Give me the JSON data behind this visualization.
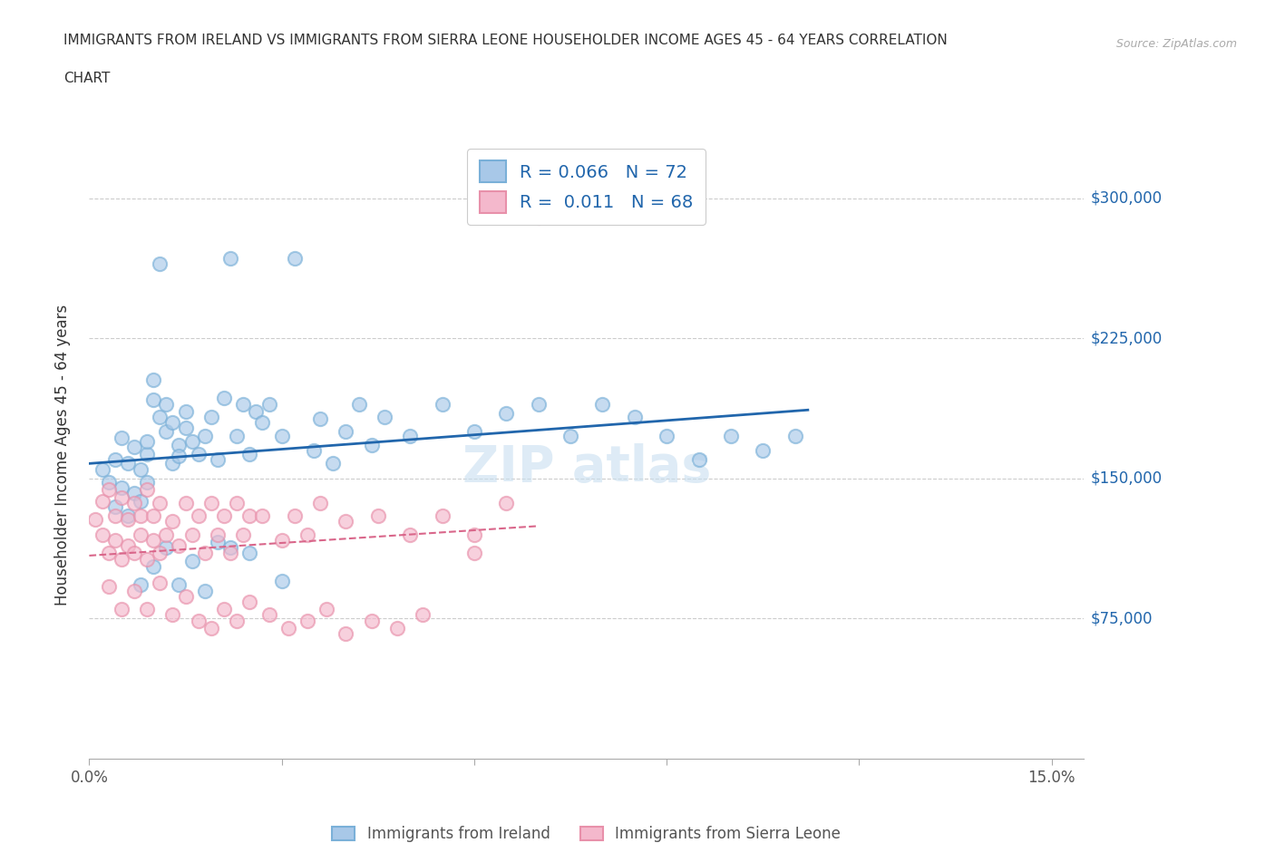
{
  "title_line1": "IMMIGRANTS FROM IRELAND VS IMMIGRANTS FROM SIERRA LEONE HOUSEHOLDER INCOME AGES 45 - 64 YEARS CORRELATION",
  "title_line2": "CHART",
  "source_text": "Source: ZipAtlas.com",
  "ylabel": "Householder Income Ages 45 - 64 years",
  "xlim": [
    0.0,
    0.155
  ],
  "ylim": [
    0,
    325000
  ],
  "yticks": [
    75000,
    150000,
    225000,
    300000
  ],
  "ytick_labels": [
    "$75,000",
    "$150,000",
    "$225,000",
    "$300,000"
  ],
  "xticks": [
    0.0,
    0.03,
    0.06,
    0.09,
    0.12,
    0.15
  ],
  "xtick_labels": [
    "0.0%",
    "",
    "",
    "",
    "",
    "15.0%"
  ],
  "ireland_color": "#a8c8e8",
  "ireland_edge_color": "#7ab0d8",
  "sierra_leone_color": "#f4b8cc",
  "sierra_leone_edge_color": "#e890aa",
  "ireland_line_color": "#2166ac",
  "sierra_leone_line_color": "#d9668a",
  "ireland_R": 0.066,
  "ireland_N": 72,
  "sierra_leone_R": 0.011,
  "sierra_leone_N": 68,
  "background_color": "#ffffff",
  "grid_color": "#cccccc",
  "ireland_scatter_x": [
    0.002,
    0.003,
    0.004,
    0.004,
    0.005,
    0.005,
    0.006,
    0.006,
    0.007,
    0.007,
    0.008,
    0.008,
    0.009,
    0.009,
    0.009,
    0.01,
    0.01,
    0.011,
    0.011,
    0.012,
    0.012,
    0.013,
    0.013,
    0.014,
    0.014,
    0.015,
    0.015,
    0.016,
    0.017,
    0.018,
    0.019,
    0.02,
    0.021,
    0.022,
    0.023,
    0.024,
    0.025,
    0.026,
    0.027,
    0.028,
    0.03,
    0.032,
    0.035,
    0.036,
    0.038,
    0.04,
    0.042,
    0.044,
    0.046,
    0.05,
    0.055,
    0.06,
    0.065,
    0.07,
    0.075,
    0.08,
    0.085,
    0.09,
    0.095,
    0.1,
    0.105,
    0.11,
    0.008,
    0.01,
    0.012,
    0.014,
    0.016,
    0.018,
    0.02,
    0.022,
    0.025,
    0.03
  ],
  "ireland_scatter_y": [
    155000,
    148000,
    160000,
    135000,
    172000,
    145000,
    158000,
    130000,
    167000,
    142000,
    155000,
    138000,
    163000,
    170000,
    148000,
    192000,
    203000,
    265000,
    183000,
    190000,
    175000,
    158000,
    180000,
    168000,
    162000,
    177000,
    186000,
    170000,
    163000,
    173000,
    183000,
    160000,
    193000,
    268000,
    173000,
    190000,
    163000,
    186000,
    180000,
    190000,
    173000,
    268000,
    165000,
    182000,
    158000,
    175000,
    190000,
    168000,
    183000,
    173000,
    190000,
    175000,
    185000,
    190000,
    173000,
    190000,
    183000,
    173000,
    160000,
    173000,
    165000,
    173000,
    93000,
    103000,
    113000,
    93000,
    106000,
    90000,
    116000,
    113000,
    110000,
    95000
  ],
  "sierra_leone_scatter_x": [
    0.001,
    0.002,
    0.002,
    0.003,
    0.003,
    0.004,
    0.004,
    0.005,
    0.005,
    0.006,
    0.006,
    0.007,
    0.007,
    0.008,
    0.008,
    0.009,
    0.009,
    0.01,
    0.01,
    0.011,
    0.011,
    0.012,
    0.013,
    0.014,
    0.015,
    0.016,
    0.017,
    0.018,
    0.019,
    0.02,
    0.021,
    0.022,
    0.023,
    0.024,
    0.025,
    0.027,
    0.03,
    0.032,
    0.034,
    0.036,
    0.04,
    0.045,
    0.05,
    0.055,
    0.06,
    0.065,
    0.07,
    0.003,
    0.005,
    0.007,
    0.009,
    0.011,
    0.013,
    0.015,
    0.017,
    0.019,
    0.021,
    0.023,
    0.025,
    0.028,
    0.031,
    0.034,
    0.037,
    0.04,
    0.044,
    0.048,
    0.052,
    0.06
  ],
  "sierra_leone_scatter_y": [
    128000,
    120000,
    138000,
    110000,
    144000,
    117000,
    130000,
    107000,
    140000,
    114000,
    128000,
    110000,
    137000,
    120000,
    130000,
    107000,
    144000,
    117000,
    130000,
    110000,
    137000,
    120000,
    127000,
    114000,
    137000,
    120000,
    130000,
    110000,
    137000,
    120000,
    130000,
    110000,
    137000,
    120000,
    130000,
    130000,
    117000,
    130000,
    120000,
    137000,
    127000,
    130000,
    120000,
    130000,
    120000,
    137000,
    290000,
    92000,
    80000,
    90000,
    80000,
    94000,
    77000,
    87000,
    74000,
    70000,
    80000,
    74000,
    84000,
    77000,
    70000,
    74000,
    80000,
    67000,
    74000,
    70000,
    77000,
    110000
  ],
  "ireland_trend_x": [
    0.001,
    0.112
  ],
  "ireland_trend_y": [
    140000,
    163000
  ],
  "sierra_leone_trend_x": [
    0.001,
    0.07
  ],
  "sierra_leone_trend_y": [
    124000,
    124500
  ]
}
